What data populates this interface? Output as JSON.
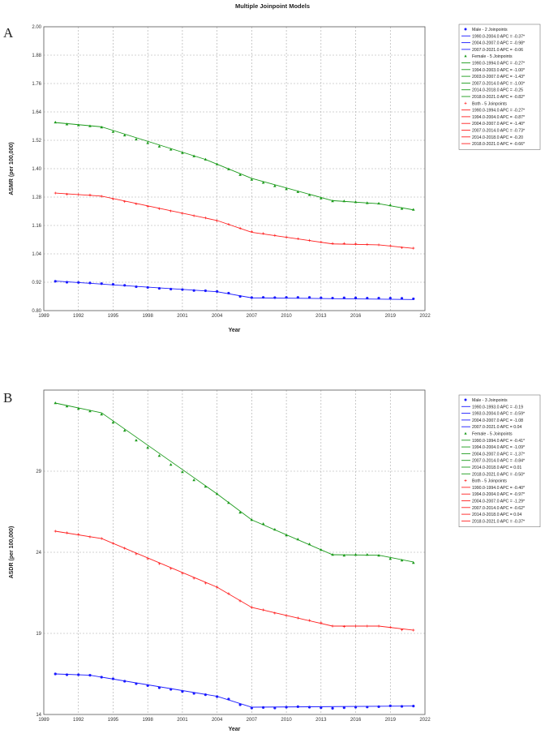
{
  "title": "Multiple Joinpoint Models",
  "chart_data": [
    {
      "panel": "A",
      "type": "line",
      "title": "Multiple Joinpoint Models",
      "xlabel": "Year",
      "ylabel": "ASMR (per 100,000)",
      "xlim": [
        1989,
        2022
      ],
      "ylim": [
        0.8,
        2.0
      ],
      "xticks": [
        "1989",
        "1992",
        "1995",
        "1998",
        "2001",
        "2004",
        "2007",
        "2010",
        "2013",
        "2016",
        "2019",
        "2022"
      ],
      "yticks": [
        "0.80",
        "0.92",
        "1.04",
        "1.16",
        "1.28",
        "1.40",
        "1.52",
        "1.64",
        "1.76",
        "1.88",
        "2.00"
      ],
      "grid": true,
      "legend_position": "right",
      "x": [
        1990,
        1991,
        1992,
        1993,
        1994,
        1995,
        1996,
        1997,
        1998,
        1999,
        2000,
        2001,
        2002,
        2003,
        2004,
        2005,
        2006,
        2007,
        2008,
        2009,
        2010,
        2011,
        2012,
        2013,
        2014,
        2015,
        2016,
        2017,
        2018,
        2019,
        2020,
        2021
      ],
      "series": [
        {
          "name": "Male - 2 Joinpoints",
          "color": "#1a1aff",
          "marker": "dot",
          "values": [
            0.924,
            0.92,
            0.919,
            0.917,
            0.914,
            0.911,
            0.907,
            0.901,
            0.898,
            0.894,
            0.891,
            0.889,
            0.885,
            0.884,
            0.881,
            0.874,
            0.86,
            0.855,
            0.856,
            0.855,
            0.856,
            0.856,
            0.856,
            0.854,
            0.853,
            0.854,
            0.854,
            0.853,
            0.853,
            0.853,
            0.852,
            0.85
          ],
          "fit": [
            [
              1990,
              0.925
            ],
            [
              2004,
              0.88
            ],
            [
              2007,
              0.854
            ],
            [
              2021,
              0.847
            ]
          ],
          "legend": [
            "1990.0-2004.0 APC = -0.37*",
            "2004.0-2007.0 APC = -0.98*",
            "2007.0-2021.0 APC = -0.06"
          ]
        },
        {
          "name": "Female - 5 Joinpoints",
          "color": "#1a9a1a",
          "marker": "triangle",
          "values": [
            1.596,
            1.588,
            1.584,
            1.58,
            1.575,
            1.556,
            1.541,
            1.524,
            1.509,
            1.494,
            1.481,
            1.467,
            1.453,
            1.439,
            1.419,
            1.398,
            1.374,
            1.354,
            1.341,
            1.327,
            1.314,
            1.302,
            1.289,
            1.275,
            1.263,
            1.263,
            1.259,
            1.255,
            1.253,
            1.246,
            1.231,
            1.227
          ],
          "fit": [
            [
              1990,
              1.595
            ],
            [
              1994,
              1.577
            ],
            [
              2003,
              1.439
            ],
            [
              2007,
              1.359
            ],
            [
              2014,
              1.265
            ],
            [
              2018,
              1.252
            ],
            [
              2021,
              1.226
            ]
          ],
          "legend": [
            "1990.0-1994.0 APC = -0.27*",
            "1994.0-2003.0 APC = -1.00*",
            "2003.0-2007.0 APC = -1.43*",
            "2007.0-2014.0 APC = -1.00*",
            "2014.0-2018.0 APC = -0.25",
            "2018.0-2021.0 APC = -0.82*"
          ]
        },
        {
          "name": "Both - 5 Joinpoints",
          "color": "#ff2020",
          "marker": "plus",
          "values": [
            1.297,
            1.292,
            1.291,
            1.289,
            1.283,
            1.272,
            1.261,
            1.251,
            1.24,
            1.231,
            1.221,
            1.211,
            1.201,
            1.192,
            1.18,
            1.165,
            1.148,
            1.134,
            1.126,
            1.118,
            1.111,
            1.104,
            1.097,
            1.09,
            1.084,
            1.084,
            1.082,
            1.08,
            1.078,
            1.074,
            1.066,
            1.064
          ],
          "fit": [
            [
              1990,
              1.297
            ],
            [
              1994,
              1.284
            ],
            [
              2004,
              1.181
            ],
            [
              2007,
              1.131
            ],
            [
              2014,
              1.082
            ],
            [
              2018,
              1.078
            ],
            [
              2021,
              1.063
            ]
          ],
          "legend": [
            "1990.0-1994.0 APC = -0.27*",
            "1994.0-2004.0 APC = -0.87*",
            "2004.0-2007.0 APC = -1.40*",
            "2007.0-2014.0 APC = -0.73*",
            "2014.0-2018.0 APC = -0.20",
            "2018.0-2021.0 APC = -0.66*"
          ]
        }
      ]
    },
    {
      "panel": "B",
      "type": "line",
      "title": "",
      "xlabel": "Year",
      "ylabel": "ASDR (per 100,000)",
      "xlim": [
        1989,
        2022
      ],
      "ylim": [
        14,
        34
      ],
      "xticks": [
        "1989",
        "1992",
        "1995",
        "1998",
        "2001",
        "2004",
        "2007",
        "2010",
        "2013",
        "2016",
        "2019",
        "2022"
      ],
      "yticks": [
        "14",
        "19",
        "24",
        "29"
      ],
      "ytick_values": [
        14,
        19,
        24,
        29
      ],
      "grid": true,
      "legend_position": "right",
      "x": [
        1990,
        1991,
        1992,
        1993,
        1994,
        1995,
        1996,
        1997,
        1998,
        1999,
        2000,
        2001,
        2002,
        2003,
        2004,
        2005,
        2006,
        2007,
        2008,
        2009,
        2010,
        2011,
        2012,
        2013,
        2014,
        2015,
        2016,
        2017,
        2018,
        2019,
        2020,
        2021
      ],
      "series": [
        {
          "name": "Male - 3 Joinpoints",
          "color": "#1a1aff",
          "marker": "dot",
          "values": [
            16.5,
            16.45,
            16.45,
            16.42,
            16.3,
            16.2,
            16.05,
            15.9,
            15.78,
            15.65,
            15.55,
            15.42,
            15.3,
            15.22,
            15.1,
            14.95,
            14.6,
            14.4,
            14.43,
            14.4,
            14.45,
            14.48,
            14.45,
            14.42,
            14.38,
            14.42,
            14.45,
            14.46,
            14.48,
            14.53,
            14.5,
            14.52
          ],
          "fit": [
            [
              1990,
              16.5
            ],
            [
              1993,
              16.42
            ],
            [
              2004,
              15.12
            ],
            [
              2007,
              14.45
            ],
            [
              2021,
              14.52
            ]
          ],
          "legend": [
            "1990.0-1993.0 APC = -0.19",
            "1993.0-2004.0 APC = -0.59*",
            "2004.0-2007.0 APC = -1.08",
            "2007.0-2021.0 APC = 0.04"
          ]
        },
        {
          "name": "Female - 5 Joinpoints",
          "color": "#1a9a1a",
          "marker": "triangle",
          "values": [
            33.2,
            33.0,
            32.85,
            32.7,
            32.5,
            32.0,
            31.5,
            30.9,
            30.45,
            29.95,
            29.4,
            28.95,
            28.45,
            28.05,
            27.6,
            27.05,
            26.45,
            26.0,
            25.75,
            25.4,
            25.05,
            24.8,
            24.5,
            24.15,
            23.85,
            23.8,
            23.85,
            23.85,
            23.8,
            23.6,
            23.5,
            23.35
          ],
          "fit": [
            [
              1990,
              33.2
            ],
            [
              1994,
              32.6
            ],
            [
              2004,
              27.6
            ],
            [
              2007,
              26.0
            ],
            [
              2014,
              23.85
            ],
            [
              2018,
              23.82
            ],
            [
              2021,
              23.4
            ]
          ],
          "legend": [
            "1990.0-1994.0 APC = -0.41*",
            "1994.0-2004.0 APC = -1.09*",
            "2004.0-2007.0 APC = -1.37*",
            "2007.0-2014.0 APC = -0.84*",
            "2014.0-2018.0 APC = 0.01",
            "2018.0-2021.0 APC = -0.50*"
          ]
        },
        {
          "name": "Both - 5 Joinpoints",
          "color": "#ff2020",
          "marker": "plus",
          "values": [
            25.3,
            25.2,
            25.1,
            24.95,
            24.85,
            24.55,
            24.25,
            23.9,
            23.6,
            23.3,
            23.0,
            22.7,
            22.4,
            22.1,
            21.85,
            21.45,
            21.0,
            20.6,
            20.45,
            20.25,
            20.1,
            19.95,
            19.8,
            19.65,
            19.45,
            19.42,
            19.45,
            19.45,
            19.45,
            19.38,
            19.22,
            19.2
          ],
          "fit": [
            [
              1990,
              25.3
            ],
            [
              1994,
              24.85
            ],
            [
              2004,
              21.85
            ],
            [
              2007,
              20.6
            ],
            [
              2014,
              19.45
            ],
            [
              2018,
              19.45
            ],
            [
              2021,
              19.2
            ]
          ],
          "legend": [
            "1990.0-1994.0 APC = -0.40*",
            "1994.0-2004.0 APC = -0.97*",
            "2004.0-2007.0 APC = -1.29*",
            "2007.0-2014.0 APC = -0.62*",
            "2014.0-2018.0 APC = 0.04",
            "2018.0-2021.0 APC = -0.37*"
          ]
        }
      ]
    }
  ]
}
